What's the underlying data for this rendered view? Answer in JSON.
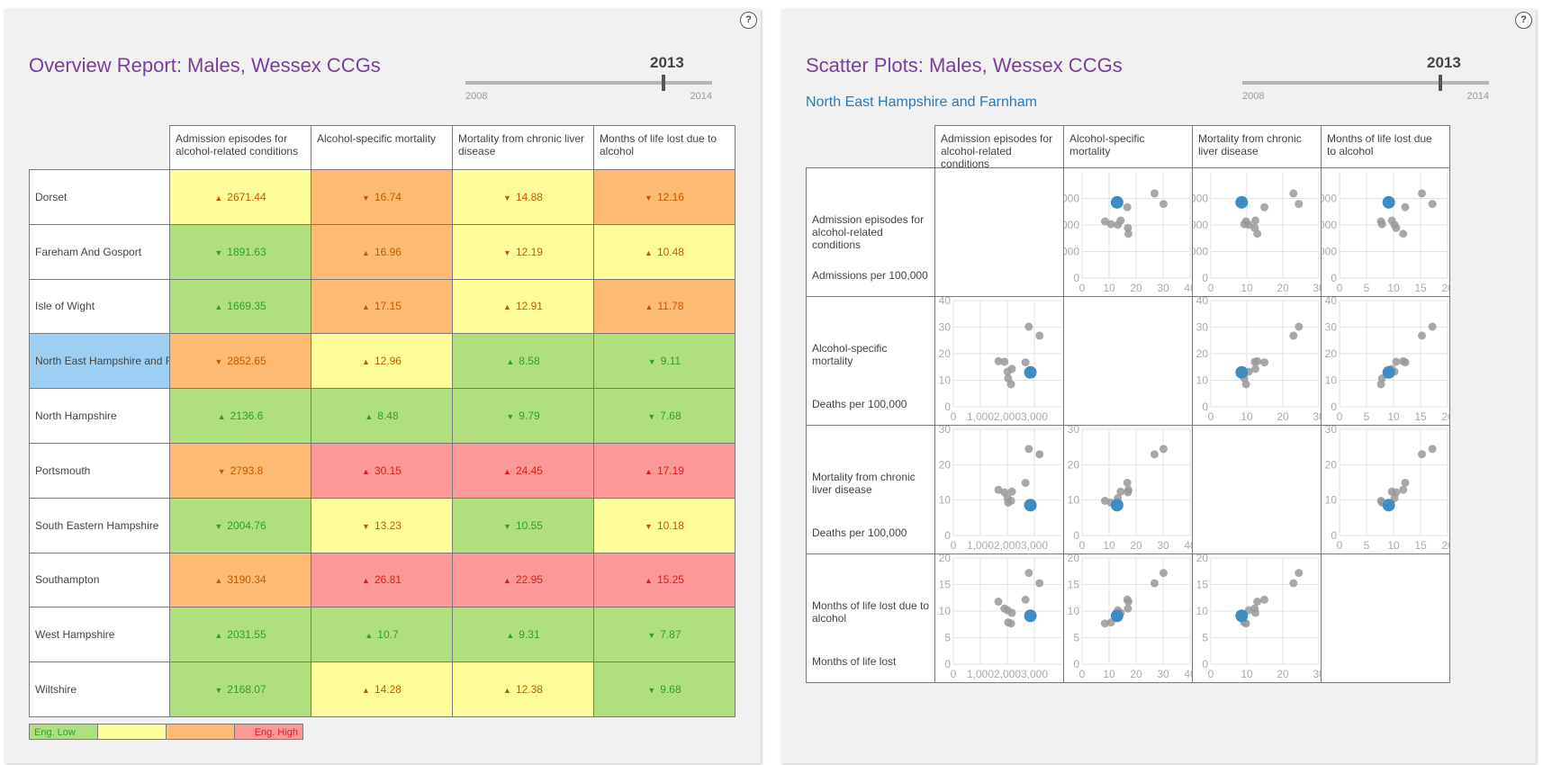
{
  "left": {
    "help": "?",
    "title": "Overview Report: Males, Wessex CCGs",
    "slider": {
      "year": "2013",
      "min": "2008",
      "max": "2014"
    },
    "columns": [
      "Admission episodes for alcohol-related conditions",
      "Alcohol-specific mortality",
      "Mortality from chronic liver disease",
      "Months of life lost due to alcohol"
    ],
    "rows": [
      {
        "name": "Dorset",
        "cells": [
          {
            "arrow": "▲",
            "value": "2671.44",
            "color": "y"
          },
          {
            "arrow": "▼",
            "value": "16.74",
            "color": "o"
          },
          {
            "arrow": "▼",
            "value": "14.88",
            "color": "y"
          },
          {
            "arrow": "▼",
            "value": "12.16",
            "color": "o"
          }
        ]
      },
      {
        "name": "Fareham And Gosport",
        "cells": [
          {
            "arrow": "▼",
            "value": "1891.63",
            "color": "g"
          },
          {
            "arrow": "▲",
            "value": "16.96",
            "color": "o"
          },
          {
            "arrow": "▼",
            "value": "12.19",
            "color": "y"
          },
          {
            "arrow": "▲",
            "value": "10.48",
            "color": "y"
          }
        ]
      },
      {
        "name": "Isle of Wight",
        "cells": [
          {
            "arrow": "▲",
            "value": "1669.35",
            "color": "g"
          },
          {
            "arrow": "▲",
            "value": "17.15",
            "color": "o"
          },
          {
            "arrow": "▲",
            "value": "12.91",
            "color": "y"
          },
          {
            "arrow": "▲",
            "value": "11.78",
            "color": "o"
          }
        ]
      },
      {
        "name": "North East Hampshire and Fa",
        "selected": true,
        "cells": [
          {
            "arrow": "▼",
            "value": "2852.65",
            "color": "o"
          },
          {
            "arrow": "▲",
            "value": "12.96",
            "color": "y"
          },
          {
            "arrow": "▲",
            "value": "8.58",
            "color": "g"
          },
          {
            "arrow": "▼",
            "value": "9.11",
            "color": "g"
          }
        ]
      },
      {
        "name": "North Hampshire",
        "cells": [
          {
            "arrow": "▲",
            "value": "2136.6",
            "color": "g"
          },
          {
            "arrow": "▲",
            "value": "8.48",
            "color": "g"
          },
          {
            "arrow": "▼",
            "value": "9.79",
            "color": "g"
          },
          {
            "arrow": "▼",
            "value": "7.68",
            "color": "g"
          }
        ]
      },
      {
        "name": "Portsmouth",
        "cells": [
          {
            "arrow": "▼",
            "value": "2793.8",
            "color": "o"
          },
          {
            "arrow": "▲",
            "value": "30.15",
            "color": "r"
          },
          {
            "arrow": "▲",
            "value": "24.45",
            "color": "r"
          },
          {
            "arrow": "▲",
            "value": "17.19",
            "color": "r"
          }
        ]
      },
      {
        "name": "South Eastern Hampshire",
        "cells": [
          {
            "arrow": "▼",
            "value": "2004.76",
            "color": "g"
          },
          {
            "arrow": "▼",
            "value": "13.23",
            "color": "y"
          },
          {
            "arrow": "▼",
            "value": "10.55",
            "color": "g"
          },
          {
            "arrow": "▼",
            "value": "10.18",
            "color": "y"
          }
        ]
      },
      {
        "name": "Southampton",
        "cells": [
          {
            "arrow": "▲",
            "value": "3190.34",
            "color": "o"
          },
          {
            "arrow": "▲",
            "value": "26.81",
            "color": "r"
          },
          {
            "arrow": "▲",
            "value": "22.95",
            "color": "r"
          },
          {
            "arrow": "▲",
            "value": "15.25",
            "color": "r"
          }
        ]
      },
      {
        "name": "West Hampshire",
        "cells": [
          {
            "arrow": "▲",
            "value": "2031.55",
            "color": "g"
          },
          {
            "arrow": "▲",
            "value": "10.7",
            "color": "g"
          },
          {
            "arrow": "▲",
            "value": "9.31",
            "color": "g"
          },
          {
            "arrow": "▼",
            "value": "7.87",
            "color": "g"
          }
        ]
      },
      {
        "name": "Wiltshire",
        "cells": [
          {
            "arrow": "▼",
            "value": "2168.07",
            "color": "g"
          },
          {
            "arrow": "▲",
            "value": "14.28",
            "color": "y"
          },
          {
            "arrow": "▲",
            "value": "12.38",
            "color": "y"
          },
          {
            "arrow": "▼",
            "value": "9.68",
            "color": "g"
          }
        ]
      }
    ],
    "legend": [
      "Eng. Low",
      "",
      "",
      "Eng. High"
    ]
  },
  "right": {
    "help": "?",
    "title": "Scatter Plots: Males, Wessex CCGs",
    "subtitle": "North East Hampshire and Farnham",
    "slider": {
      "year": "2013",
      "min": "2008",
      "max": "2014"
    },
    "columns": [
      "Admission episodes for alcohol-related conditions",
      "Alcohol-specific mortality",
      "Mortality from chronic liver disease",
      "Months of life lost due to alcohol"
    ],
    "rows": [
      {
        "name": "Admission episodes for alcohol-related conditions",
        "unit": "Admissions per 100,000"
      },
      {
        "name": "Alcohol-specific mortality",
        "unit": "Deaths per 100,000"
      },
      {
        "name": "Mortality from chronic liver disease",
        "unit": "Deaths per 100,000"
      },
      {
        "name": "Months of life lost due to alcohol",
        "unit": "Months of life lost"
      }
    ]
  },
  "colors": {
    "green": "#b0e07e",
    "yellow": "#fffd9a",
    "orange": "#fdba72",
    "red": "#fd9898",
    "selected": "#9dcff4",
    "title": "#7a3e9d",
    "highlight_dot": "#3d8cc4",
    "dot": "#999999"
  },
  "chart_data": {
    "type": "scatter",
    "variables": [
      "admissions",
      "alcohol_mortality",
      "liver_mortality",
      "months_lost"
    ],
    "points": [
      {
        "ccg": "Dorset",
        "values": [
          2671.44,
          16.74,
          14.88,
          12.16
        ]
      },
      {
        "ccg": "Fareham And Gosport",
        "values": [
          1891.63,
          16.96,
          12.19,
          10.48
        ]
      },
      {
        "ccg": "Isle of Wight",
        "values": [
          1669.35,
          17.15,
          12.91,
          11.78
        ]
      },
      {
        "ccg": "North East Hampshire and Farnham",
        "values": [
          2852.65,
          12.96,
          8.58,
          9.11
        ],
        "highlight": true
      },
      {
        "ccg": "North Hampshire",
        "values": [
          2136.6,
          8.48,
          9.79,
          7.68
        ]
      },
      {
        "ccg": "Portsmouth",
        "values": [
          2793.8,
          30.15,
          24.45,
          17.19
        ]
      },
      {
        "ccg": "South Eastern Hampshire",
        "values": [
          2004.76,
          13.23,
          10.55,
          10.18
        ]
      },
      {
        "ccg": "Southampton",
        "values": [
          3190.34,
          26.81,
          22.95,
          15.25
        ]
      },
      {
        "ccg": "West Hampshire",
        "values": [
          2031.55,
          10.7,
          9.31,
          7.87
        ]
      },
      {
        "ccg": "Wiltshire",
        "values": [
          2168.07,
          14.28,
          12.38,
          9.68
        ]
      }
    ],
    "axes": [
      {
        "range": [
          0,
          4000
        ],
        "ticks": [
          0,
          1000,
          2000,
          3000
        ],
        "tick_labels": [
          "0",
          "1,000",
          "2,000",
          "3,000"
        ]
      },
      {
        "range": [
          0,
          40
        ],
        "ticks": [
          0,
          10,
          20,
          30,
          40
        ],
        "tick_labels": [
          "0",
          "10",
          "20",
          "30",
          "40"
        ]
      },
      {
        "range": [
          0,
          30
        ],
        "ticks": [
          0,
          10,
          20,
          30
        ],
        "tick_labels": [
          "0",
          "10",
          "20",
          "30"
        ]
      },
      {
        "range": [
          0,
          20
        ],
        "ticks": [
          0,
          5,
          10,
          15,
          20
        ],
        "tick_labels": [
          "0",
          "5",
          "10",
          "15",
          "20"
        ]
      }
    ],
    "grid": true
  }
}
